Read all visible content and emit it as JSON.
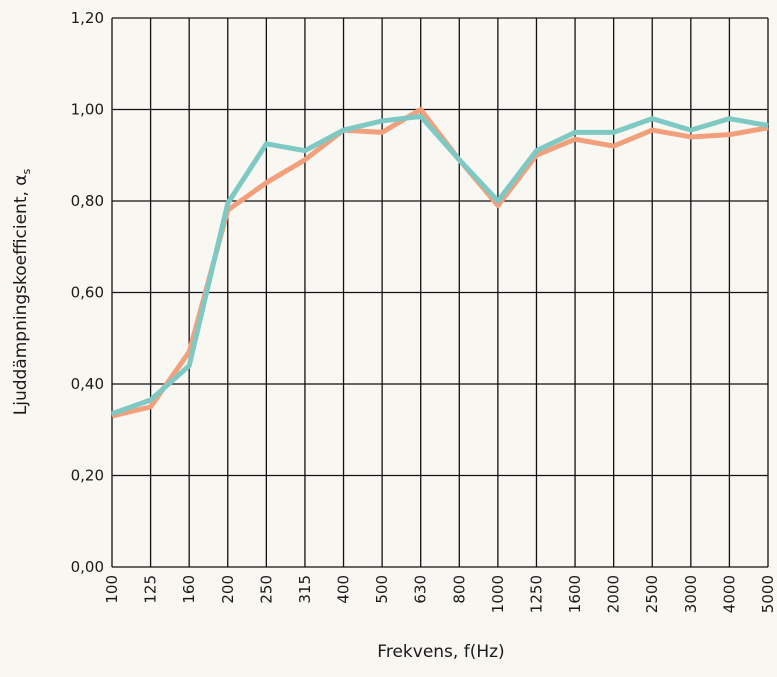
{
  "chart_data": {
    "type": "line",
    "xlabel": "Frekvens, f(Hz)",
    "ylabel": "Ljuddämpningskoefficient, α",
    "ylabel_subscript": "s",
    "categories": [
      "100",
      "125",
      "160",
      "200",
      "250",
      "315",
      "400",
      "500",
      "630",
      "800",
      "1000",
      "1250",
      "1600",
      "2000",
      "2500",
      "3000",
      "4000",
      "5000"
    ],
    "series": [
      {
        "color": "#f2a07c",
        "values": [
          0.33,
          0.35,
          0.47,
          0.78,
          0.84,
          0.89,
          0.955,
          0.95,
          1.0,
          0.89,
          0.79,
          0.9,
          0.935,
          0.92,
          0.955,
          0.94,
          0.945,
          0.96
        ]
      },
      {
        "color": "#7fc9c4",
        "values": [
          0.335,
          0.365,
          0.44,
          0.795,
          0.925,
          0.91,
          0.955,
          0.975,
          0.985,
          0.89,
          0.8,
          0.91,
          0.95,
          0.95,
          0.98,
          0.955,
          0.98,
          0.965
        ]
      }
    ],
    "ylim": [
      0,
      1.2
    ],
    "yticks": [
      {
        "value": 0,
        "label": "0,00"
      },
      {
        "value": 0.2,
        "label": "0,20"
      },
      {
        "value": 0.4,
        "label": "0,40"
      },
      {
        "value": 0.6,
        "label": "0,60"
      },
      {
        "value": 0.8,
        "label": "0,80"
      },
      {
        "value": 1.0,
        "label": "1,00"
      },
      {
        "value": 1.2,
        "label": "1,20"
      }
    ],
    "grid": true
  }
}
